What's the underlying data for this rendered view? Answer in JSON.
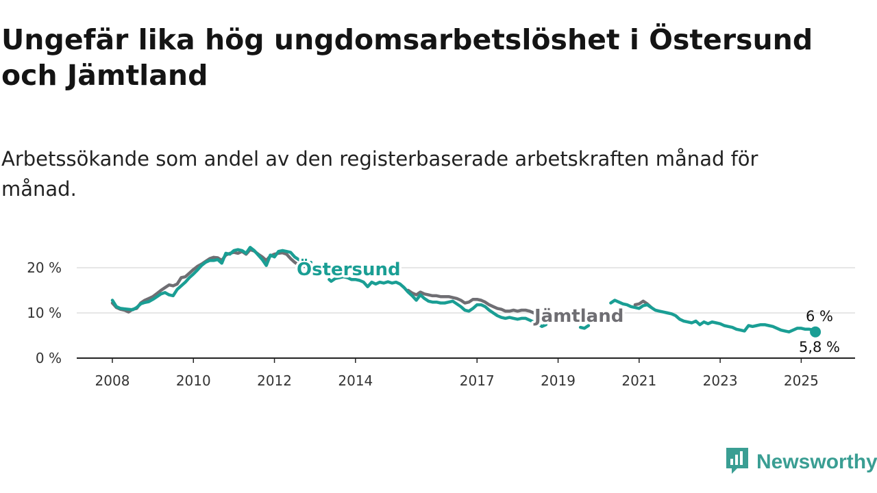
{
  "title": "Ungefär lika hög ungdomsarbetslöshet i Östersund och Jämtland",
  "subtitle": "Arbetssökande som andel av den registerbaserade arbetskraften månad för månad.",
  "brand": {
    "name": "Newsworthy",
    "icon": "newsworthy-logo-icon"
  },
  "colors": {
    "Östersund": "#1a9e94",
    "Jämtland": "#6f6e73",
    "grid": "#dddddd",
    "axis": "#222222"
  },
  "chart_data": {
    "type": "line",
    "x_unit": "year",
    "xlim": [
      2008,
      2025.45
    ],
    "ylim": [
      0,
      20
    ],
    "y_ticks": [
      0,
      10,
      20
    ],
    "y_tick_labels": [
      "0 %",
      "10 %",
      "20 %"
    ],
    "x_ticks": [
      2008,
      2010,
      2012,
      2014,
      2017,
      2019,
      2021,
      2023,
      2025
    ],
    "x_tick_labels": [
      "2008",
      "2010",
      "2012",
      "2014",
      "2017",
      "2019",
      "2021",
      "2023",
      "2025"
    ],
    "grid": "horizontal",
    "legend": "inline labels on lines",
    "series": [
      {
        "name": "Jämtland",
        "end_label": "6 %",
        "segments": [
          [
            [
              2008.0,
              12.2
            ],
            [
              2008.1,
              11.2
            ],
            [
              2008.2,
              10.8
            ],
            [
              2008.3,
              10.6
            ],
            [
              2008.4,
              10.2
            ],
            [
              2008.5,
              10.8
            ],
            [
              2008.6,
              11.0
            ],
            [
              2008.7,
              12.2
            ],
            [
              2008.8,
              12.8
            ],
            [
              2008.9,
              13.2
            ],
            [
              2009.0,
              13.6
            ],
            [
              2009.1,
              14.3
            ],
            [
              2009.2,
              15.0
            ],
            [
              2009.3,
              15.6
            ],
            [
              2009.4,
              16.2
            ],
            [
              2009.5,
              16.0
            ],
            [
              2009.6,
              16.4
            ],
            [
              2009.7,
              17.8
            ],
            [
              2009.8,
              18.0
            ],
            [
              2009.9,
              18.8
            ],
            [
              2010.0,
              19.6
            ],
            [
              2010.1,
              20.3
            ],
            [
              2010.2,
              20.8
            ],
            [
              2010.3,
              21.4
            ],
            [
              2010.4,
              22.0
            ],
            [
              2010.5,
              22.3
            ],
            [
              2010.6,
              22.2
            ],
            [
              2010.7,
              21.6
            ],
            [
              2010.8,
              22.8
            ],
            [
              2010.9,
              23.2
            ],
            [
              2011.0,
              23.4
            ],
            [
              2011.1,
              23.2
            ],
            [
              2011.2,
              23.6
            ],
            [
              2011.3,
              23.0
            ],
            [
              2011.4,
              24.0
            ],
            [
              2011.5,
              23.7
            ],
            [
              2011.6,
              23.0
            ],
            [
              2011.7,
              22.4
            ],
            [
              2011.8,
              21.6
            ],
            [
              2011.9,
              22.6
            ],
            [
              2012.0,
              23.0
            ],
            [
              2012.1,
              23.2
            ],
            [
              2012.2,
              23.3
            ],
            [
              2012.3,
              23.0
            ],
            [
              2012.4,
              22.0
            ],
            [
              2012.5,
              21.2
            ],
            [
              2012.6,
              20.6
            ],
            [
              2012.7,
              20.2
            ],
            [
              2012.85,
              21.0
            ]
          ],
          [
            [
              2015.3,
              15.0
            ],
            [
              2015.4,
              14.4
            ],
            [
              2015.5,
              14.0
            ],
            [
              2015.6,
              14.6
            ],
            [
              2015.7,
              14.2
            ],
            [
              2015.8,
              14.0
            ],
            [
              2015.9,
              13.8
            ],
            [
              2016.0,
              13.8
            ],
            [
              2016.1,
              13.6
            ],
            [
              2016.2,
              13.6
            ],
            [
              2016.3,
              13.6
            ],
            [
              2016.4,
              13.4
            ],
            [
              2016.5,
              13.2
            ],
            [
              2016.6,
              12.8
            ],
            [
              2016.7,
              12.2
            ],
            [
              2016.8,
              12.4
            ],
            [
              2016.9,
              13.0
            ],
            [
              2017.0,
              13.0
            ],
            [
              2017.1,
              12.8
            ],
            [
              2017.2,
              12.4
            ],
            [
              2017.3,
              11.8
            ],
            [
              2017.4,
              11.4
            ],
            [
              2017.5,
              11.0
            ],
            [
              2017.6,
              10.8
            ],
            [
              2017.7,
              10.4
            ],
            [
              2017.8,
              10.4
            ],
            [
              2017.9,
              10.6
            ],
            [
              2018.0,
              10.4
            ],
            [
              2018.1,
              10.6
            ],
            [
              2018.2,
              10.6
            ],
            [
              2018.3,
              10.4
            ],
            [
              2018.4,
              10.0
            ],
            [
              2018.5,
              9.4
            ],
            [
              2018.6,
              9.2
            ]
          ],
          [
            [
              2020.9,
              11.8
            ],
            [
              2021.0,
              12.0
            ],
            [
              2021.1,
              12.6
            ],
            [
              2021.2,
              12.0
            ],
            [
              2021.3,
              11.2
            ]
          ]
        ]
      },
      {
        "name": "Östersund",
        "end_label": "5,8 %",
        "segments": [
          [
            [
              2008.0,
              12.8
            ],
            [
              2008.1,
              11.4
            ],
            [
              2008.2,
              11.0
            ],
            [
              2008.3,
              10.9
            ],
            [
              2008.4,
              10.8
            ],
            [
              2008.5,
              10.7
            ],
            [
              2008.6,
              11.2
            ],
            [
              2008.7,
              12.0
            ],
            [
              2008.8,
              12.3
            ],
            [
              2008.9,
              12.5
            ],
            [
              2009.0,
              13.0
            ],
            [
              2009.1,
              13.6
            ],
            [
              2009.2,
              14.2
            ],
            [
              2009.3,
              14.5
            ],
            [
              2009.4,
              14.0
            ],
            [
              2009.5,
              13.8
            ],
            [
              2009.6,
              15.2
            ],
            [
              2009.7,
              16.0
            ],
            [
              2009.8,
              16.8
            ],
            [
              2009.9,
              17.8
            ],
            [
              2010.0,
              18.6
            ],
            [
              2010.1,
              19.5
            ],
            [
              2010.2,
              20.5
            ],
            [
              2010.3,
              21.2
            ],
            [
              2010.4,
              21.6
            ],
            [
              2010.5,
              21.6
            ],
            [
              2010.6,
              21.8
            ],
            [
              2010.7,
              21.0
            ],
            [
              2010.8,
              23.2
            ],
            [
              2010.9,
              23.0
            ],
            [
              2011.0,
              23.8
            ],
            [
              2011.1,
              24.0
            ],
            [
              2011.2,
              23.8
            ],
            [
              2011.3,
              23.2
            ],
            [
              2011.4,
              24.5
            ],
            [
              2011.5,
              23.8
            ],
            [
              2011.6,
              22.8
            ],
            [
              2011.7,
              21.8
            ],
            [
              2011.8,
              20.5
            ],
            [
              2011.9,
              22.8
            ],
            [
              2012.0,
              22.4
            ],
            [
              2012.1,
              23.6
            ],
            [
              2012.2,
              23.8
            ],
            [
              2012.3,
              23.6
            ],
            [
              2012.4,
              23.4
            ],
            [
              2012.5,
              22.4
            ],
            [
              2012.6,
              21.8
            ],
            [
              2012.7,
              21.2
            ],
            [
              2012.8,
              19.8
            ],
            [
              2012.9,
              21.2
            ]
          ],
          [
            [
              2013.35,
              17.4
            ],
            [
              2013.4,
              17.0
            ],
            [
              2013.5,
              17.6
            ],
            [
              2013.6,
              17.8
            ],
            [
              2013.7,
              18.0
            ],
            [
              2013.8,
              17.8
            ],
            [
              2013.9,
              17.4
            ],
            [
              2014.0,
              17.4
            ],
            [
              2014.1,
              17.2
            ],
            [
              2014.2,
              16.8
            ],
            [
              2014.3,
              15.8
            ],
            [
              2014.4,
              16.8
            ],
            [
              2014.5,
              16.4
            ],
            [
              2014.6,
              16.8
            ],
            [
              2014.7,
              16.6
            ],
            [
              2014.8,
              16.9
            ],
            [
              2014.9,
              16.6
            ],
            [
              2015.0,
              16.8
            ],
            [
              2015.1,
              16.4
            ],
            [
              2015.2,
              15.6
            ],
            [
              2015.3,
              14.6
            ],
            [
              2015.4,
              13.8
            ],
            [
              2015.5,
              12.8
            ],
            [
              2015.6,
              14.0
            ],
            [
              2015.7,
              13.2
            ],
            [
              2015.8,
              12.6
            ],
            [
              2015.9,
              12.4
            ],
            [
              2016.0,
              12.4
            ],
            [
              2016.1,
              12.2
            ],
            [
              2016.2,
              12.2
            ],
            [
              2016.3,
              12.4
            ],
            [
              2016.4,
              12.6
            ],
            [
              2016.5,
              12.0
            ],
            [
              2016.6,
              11.4
            ],
            [
              2016.7,
              10.6
            ],
            [
              2016.8,
              10.4
            ],
            [
              2016.9,
              11.0
            ],
            [
              2017.0,
              11.8
            ],
            [
              2017.1,
              11.8
            ],
            [
              2017.2,
              11.4
            ],
            [
              2017.3,
              10.6
            ],
            [
              2017.4,
              10.0
            ],
            [
              2017.5,
              9.4
            ],
            [
              2017.6,
              9.0
            ],
            [
              2017.7,
              8.8
            ],
            [
              2017.8,
              9.0
            ],
            [
              2017.9,
              8.8
            ],
            [
              2018.0,
              8.6
            ],
            [
              2018.1,
              8.8
            ],
            [
              2018.2,
              8.8
            ],
            [
              2018.3,
              8.4
            ],
            [
              2018.4,
              8.0
            ],
            [
              2018.5,
              7.6
            ],
            [
              2018.6,
              7.0
            ],
            [
              2018.7,
              7.4
            ]
          ],
          [
            [
              2019.55,
              6.8
            ],
            [
              2019.65,
              6.6
            ],
            [
              2019.75,
              7.2
            ]
          ],
          [
            [
              2020.3,
              12.2
            ],
            [
              2020.4,
              12.8
            ],
            [
              2020.5,
              12.4
            ],
            [
              2020.6,
              12.0
            ],
            [
              2020.7,
              11.8
            ],
            [
              2020.8,
              11.4
            ],
            [
              2020.9,
              11.2
            ],
            [
              2021.0,
              11.0
            ],
            [
              2021.1,
              11.6
            ],
            [
              2021.2,
              11.8
            ],
            [
              2021.3,
              11.2
            ],
            [
              2021.4,
              10.6
            ],
            [
              2021.5,
              10.4
            ],
            [
              2021.6,
              10.2
            ],
            [
              2021.7,
              10.0
            ],
            [
              2021.8,
              9.8
            ],
            [
              2021.9,
              9.4
            ],
            [
              2022.0,
              8.6
            ],
            [
              2022.1,
              8.2
            ],
            [
              2022.2,
              8.0
            ],
            [
              2022.3,
              7.8
            ],
            [
              2022.4,
              8.2
            ],
            [
              2022.5,
              7.4
            ],
            [
              2022.6,
              8.0
            ],
            [
              2022.7,
              7.6
            ],
            [
              2022.8,
              8.0
            ],
            [
              2022.9,
              7.8
            ],
            [
              2023.0,
              7.6
            ],
            [
              2023.1,
              7.2
            ],
            [
              2023.2,
              7.0
            ],
            [
              2023.3,
              6.8
            ],
            [
              2023.4,
              6.4
            ],
            [
              2023.5,
              6.2
            ],
            [
              2023.6,
              6.0
            ],
            [
              2023.7,
              7.2
            ],
            [
              2023.8,
              7.0
            ],
            [
              2023.9,
              7.2
            ],
            [
              2024.0,
              7.4
            ],
            [
              2024.1,
              7.4
            ],
            [
              2024.2,
              7.2
            ],
            [
              2024.3,
              7.0
            ],
            [
              2024.4,
              6.6
            ],
            [
              2024.5,
              6.2
            ],
            [
              2024.6,
              6.0
            ],
            [
              2024.7,
              5.8
            ],
            [
              2024.8,
              6.2
            ],
            [
              2024.9,
              6.6
            ],
            [
              2025.0,
              6.6
            ],
            [
              2025.1,
              6.4
            ],
            [
              2025.2,
              6.4
            ],
            [
              2025.3,
              6.2
            ],
            [
              2025.35,
              5.8
            ]
          ]
        ]
      }
    ]
  }
}
